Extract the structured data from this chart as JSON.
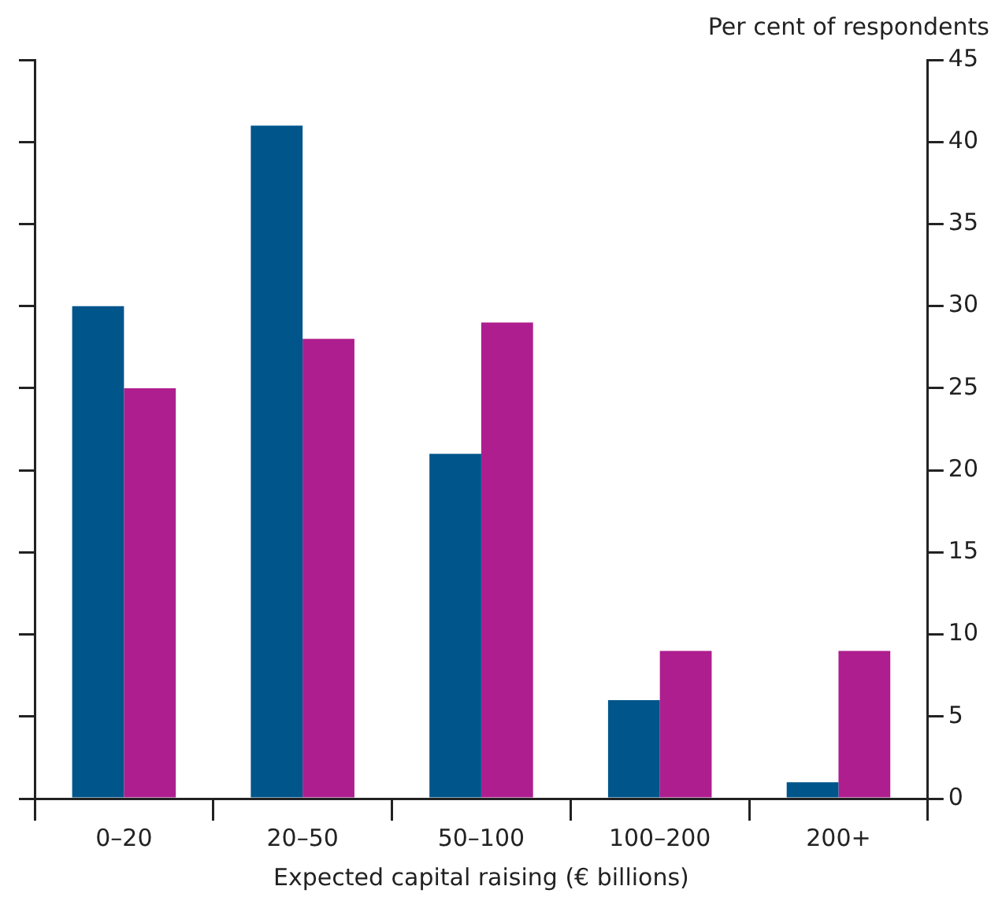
{
  "chart_data": {
    "type": "bar",
    "ylabel": "Per cent of respondents",
    "xlabel": "Expected capital raising (€ billions)",
    "categories": [
      "0–20",
      "20–50",
      "50–100",
      "100–200",
      "200+"
    ],
    "series": [
      {
        "color": "#00558b",
        "values": [
          30,
          41,
          21,
          6,
          1
        ]
      },
      {
        "color": "#ae1e8e",
        "values": [
          25,
          28,
          29,
          9,
          9
        ]
      }
    ],
    "ylim": [
      0,
      45
    ],
    "yticks": [
      0,
      5,
      10,
      15,
      20,
      25,
      30,
      35,
      40,
      45
    ],
    "grid": false,
    "legend": false
  }
}
